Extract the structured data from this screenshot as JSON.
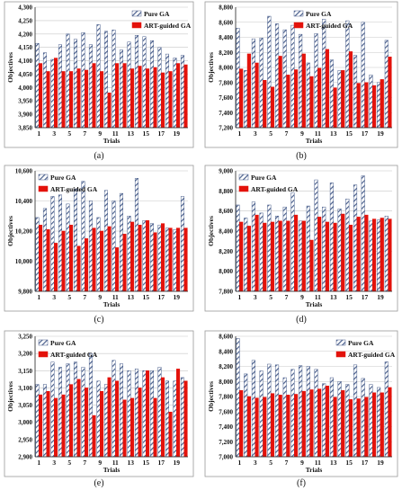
{
  "figure": {
    "colors": {
      "pure_ga": "#4a5f8c",
      "art_ga": "#e3120b",
      "grid": "#c8c8c8",
      "axis": "#222222",
      "text": "#111111"
    }
  },
  "chart_data": [
    {
      "type": "bar",
      "caption": "(a)",
      "xlabel": "Trials",
      "ylabel": "Objectives",
      "ylim": [
        3850,
        4300
      ],
      "ytick_step": 50,
      "categories": [
        "1",
        "2",
        "3",
        "4",
        "5",
        "6",
        "7",
        "8",
        "9",
        "10",
        "11",
        "12",
        "13",
        "14",
        "15",
        "16",
        "17",
        "18",
        "19",
        "20"
      ],
      "xtick_labels": [
        "1",
        "3",
        "5",
        "7",
        "9",
        "11",
        "13",
        "15",
        "17",
        "19"
      ],
      "legend": "top-right",
      "grid": true,
      "series": [
        {
          "name": "Pure GA",
          "values": [
            4165,
            4130,
            4105,
            4160,
            4200,
            4180,
            4205,
            4160,
            4235,
            4210,
            4215,
            4140,
            4170,
            4195,
            4190,
            4175,
            4150,
            4125,
            4110,
            4120
          ]
        },
        {
          "name": "ART-guided GA",
          "values": [
            4090,
            4060,
            4110,
            4060,
            4060,
            4070,
            4065,
            4090,
            4060,
            3980,
            4090,
            4090,
            4070,
            4080,
            4070,
            4075,
            4055,
            4060,
            4090,
            4085
          ]
        }
      ]
    },
    {
      "type": "bar",
      "caption": "(b)",
      "xlabel": "Trials",
      "ylabel": "Objectives",
      "ylim": [
        7200,
        8800
      ],
      "ytick_step": 200,
      "categories": [
        "1",
        "2",
        "3",
        "4",
        "5",
        "6",
        "7",
        "8",
        "9",
        "10",
        "11",
        "12",
        "13",
        "14",
        "15",
        "16",
        "17",
        "18",
        "19",
        "20"
      ],
      "xtick_labels": [
        "1",
        "3",
        "5",
        "7",
        "9",
        "11",
        "13",
        "15",
        "17",
        "19"
      ],
      "legend": "top-center",
      "grid": true,
      "series": [
        {
          "name": "Pure GA",
          "values": [
            8520,
            7960,
            8380,
            8390,
            8680,
            8580,
            8500,
            8560,
            8440,
            8060,
            8450,
            8640,
            8100,
            7960,
            8620,
            8160,
            8600,
            7900,
            7800,
            8360
          ]
        },
        {
          "name": "ART-guided GA",
          "values": [
            7980,
            8180,
            8060,
            7830,
            7740,
            8150,
            7900,
            7970,
            8180,
            7880,
            7990,
            8240,
            7730,
            7960,
            8210,
            7790,
            7800,
            7760,
            7840,
            8140
          ]
        }
      ]
    },
    {
      "type": "bar",
      "caption": "(c)",
      "xlabel": "Trials",
      "ylabel": "Objectives",
      "ylim": [
        9800,
        10600
      ],
      "ytick_step": 200,
      "categories": [
        "1",
        "2",
        "3",
        "4",
        "5",
        "6",
        "7",
        "8",
        "9",
        "10",
        "11",
        "12",
        "13",
        "14",
        "15",
        "16",
        "17",
        "18",
        "19",
        "20"
      ],
      "xtick_labels": [
        "1",
        "3",
        "5",
        "7",
        "9",
        "11",
        "13",
        "15",
        "17",
        "19"
      ],
      "legend": "top-left",
      "grid": true,
      "series": [
        {
          "name": "Pure GA",
          "values": [
            10290,
            10350,
            10430,
            10440,
            10380,
            10480,
            10530,
            10400,
            10290,
            10470,
            10400,
            10450,
            10300,
            10550,
            10270,
            10250,
            10240,
            10220,
            10210,
            10430
          ]
        },
        {
          "name": "ART-guided GA",
          "values": [
            10240,
            10210,
            10120,
            10200,
            10240,
            10100,
            10150,
            10220,
            10200,
            10230,
            10090,
            10180,
            10260,
            10240,
            10270,
            10190,
            10250,
            10220,
            10220,
            10220
          ]
        }
      ]
    },
    {
      "type": "bar",
      "caption": "(d)",
      "xlabel": "Trials",
      "ylabel": "Objectives",
      "ylim": [
        7800,
        9000
      ],
      "ytick_step": 200,
      "categories": [
        "1",
        "2",
        "3",
        "4",
        "5",
        "6",
        "7",
        "8",
        "9",
        "10",
        "11",
        "12",
        "13",
        "14",
        "15",
        "16",
        "17",
        "18",
        "19",
        "20"
      ],
      "xtick_labels": [
        "1",
        "3",
        "5",
        "7",
        "9",
        "11",
        "13",
        "15",
        "17",
        "19"
      ],
      "legend": "top-left",
      "grid": true,
      "series": [
        {
          "name": "Pure GA",
          "values": [
            8660,
            8530,
            8690,
            8580,
            8660,
            8550,
            8640,
            8780,
            8500,
            8650,
            8910,
            8640,
            8880,
            8620,
            8720,
            8860,
            8950,
            8500,
            8510,
            8550
          ]
        },
        {
          "name": "ART-guided GA",
          "values": [
            8490,
            8450,
            8560,
            8480,
            8490,
            8500,
            8500,
            8560,
            8500,
            8310,
            8540,
            8490,
            8480,
            8570,
            8460,
            8540,
            8560,
            8520,
            8530,
            8520
          ]
        }
      ]
    },
    {
      "type": "bar",
      "caption": "(e)",
      "xlabel": "Trials",
      "ylabel": "Objectives",
      "ylim": [
        2900,
        3250
      ],
      "ytick_step": 50,
      "categories": [
        "1",
        "2",
        "3",
        "4",
        "5",
        "6",
        "7",
        "8",
        "9",
        "10",
        "11",
        "12",
        "13",
        "14",
        "15",
        "16",
        "17",
        "18",
        "19",
        "20"
      ],
      "xtick_labels": [
        "1",
        "3",
        "5",
        "7",
        "9",
        "11",
        "13",
        "15",
        "17",
        "19"
      ],
      "legend": "top-left",
      "grid": true,
      "series": [
        {
          "name": "Pure GA",
          "values": [
            3110,
            3110,
            3175,
            3160,
            3170,
            3175,
            3160,
            3200,
            3120,
            3110,
            3180,
            3170,
            3150,
            3155,
            3150,
            3150,
            3160,
            3120,
            3120,
            3130
          ]
        },
        {
          "name": "ART-guided GA",
          "values": [
            3080,
            3090,
            3070,
            3080,
            3110,
            3125,
            3100,
            3020,
            3090,
            3130,
            3120,
            3065,
            3070,
            3100,
            3150,
            3070,
            3130,
            3030,
            3155,
            3120
          ]
        }
      ]
    },
    {
      "type": "bar",
      "caption": "(f)",
      "xlabel": "Trials",
      "ylabel": "Objectives",
      "ylim": [
        7000,
        8600
      ],
      "ytick_step": 200,
      "categories": [
        "1",
        "2",
        "3",
        "4",
        "5",
        "6",
        "7",
        "8",
        "9",
        "10",
        "11",
        "12",
        "13",
        "14",
        "15",
        "16",
        "17",
        "18",
        "19",
        "20"
      ],
      "xtick_labels": [
        "1",
        "3",
        "5",
        "7",
        "9",
        "11",
        "13",
        "15",
        "17",
        "19"
      ],
      "legend": "top-right",
      "grid": true,
      "series": [
        {
          "name": "Pure GA",
          "values": [
            8570,
            8100,
            8280,
            8140,
            8230,
            8220,
            8050,
            8160,
            8210,
            8200,
            8160,
            7970,
            8050,
            8000,
            7960,
            8220,
            8040,
            7960,
            7920,
            8260
          ]
        },
        {
          "name": "ART-guided GA",
          "values": [
            7880,
            7800,
            7780,
            7790,
            7840,
            7820,
            7820,
            7830,
            7870,
            7890,
            7900,
            7940,
            7790,
            7880,
            7760,
            7770,
            7790,
            7850,
            7850,
            7920
          ]
        }
      ]
    }
  ]
}
